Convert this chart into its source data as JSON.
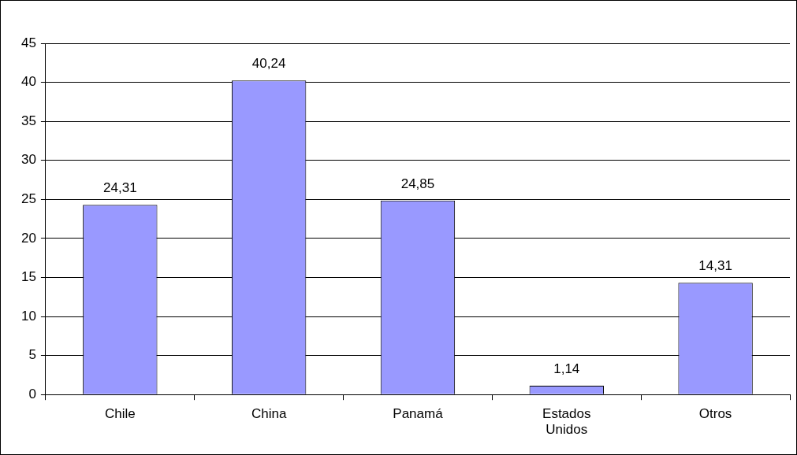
{
  "chart_data": {
    "type": "bar",
    "categories": [
      "Chile",
      "China",
      "Panamá",
      "Estados Unidos",
      "Otros"
    ],
    "values": [
      24.31,
      40.24,
      24.85,
      1.14,
      14.31
    ],
    "color": "#9999ff",
    "value_labels": [
      "24,31",
      "40,24",
      "24,85",
      "1,14",
      "14,31"
    ],
    "ylim": [
      0,
      45
    ],
    "yticks": [
      0,
      5,
      10,
      15,
      20,
      25,
      30,
      35,
      40,
      45
    ],
    "grid": "y",
    "legend": false
  }
}
